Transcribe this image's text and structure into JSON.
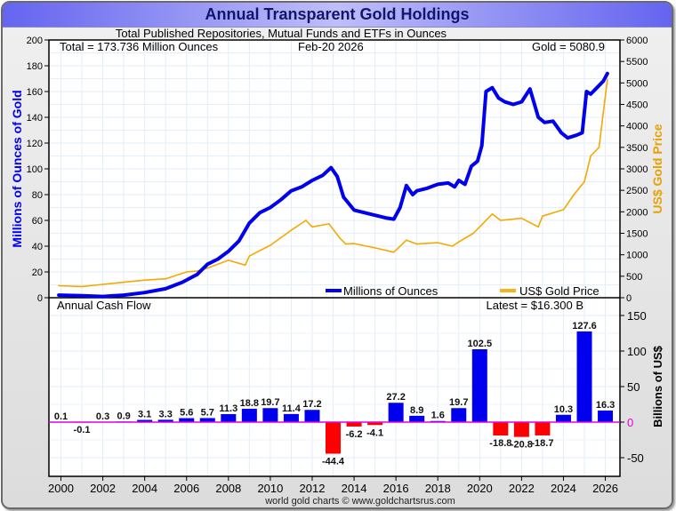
{
  "chart_data": [
    {
      "type": "line",
      "title": "Annual Transparent Gold Holdings",
      "subtitle": "Total Published Repositories, Mutual Funds and ETFs in Ounces",
      "annotations": {
        "total": "Total = 173.736 Million Ounces",
        "date": "Feb-20  2026",
        "gold": "Gold = 5080.9"
      },
      "ylabel": "Millions of Ounces of Gold",
      "y2label": "US$ Gold Price",
      "ylim": [
        0,
        200
      ],
      "y2lim": [
        0,
        6000
      ],
      "yticks": [
        "0",
        "20",
        "40",
        "60",
        "80",
        "100",
        "120",
        "140",
        "160",
        "180",
        "200"
      ],
      "y2ticks": [
        "0",
        "500",
        "1000",
        "1500",
        "2000",
        "2500",
        "3000",
        "3500",
        "4000",
        "4500",
        "5000",
        "5500",
        "6000"
      ],
      "legend_position": "bottom-right",
      "grid": true,
      "series": [
        {
          "name": "Millions of Ounces",
          "axis": "left",
          "color": "#0000ee",
          "x": [
            1999.9,
            2001,
            2002,
            2003,
            2004,
            2005,
            2005.8,
            2006.5,
            2007,
            2007.5,
            2008,
            2008.5,
            2009,
            2009.5,
            2010,
            2010.5,
            2011,
            2011.5,
            2012,
            2012.5,
            2012.9,
            2013.2,
            2013.5,
            2014,
            2014.5,
            2015,
            2015.5,
            2015.9,
            2016.2,
            2016.5,
            2016.8,
            2017,
            2017.5,
            2018,
            2018.5,
            2018.8,
            2019,
            2019.3,
            2019.6,
            2019.9,
            2020.1,
            2020.3,
            2020.6,
            2020.9,
            2021.2,
            2021.6,
            2022.0,
            2022.4,
            2022.8,
            2023.1,
            2023.5,
            2023.9,
            2024.2,
            2024.6,
            2024.9,
            2025.1,
            2025.3,
            2025.6,
            2025.9,
            2026.1
          ],
          "values": [
            2,
            1.5,
            1,
            2,
            4,
            7,
            12,
            18,
            26,
            30,
            36,
            44,
            58,
            66,
            70,
            76,
            83,
            86,
            91,
            95,
            101,
            94,
            78,
            68,
            66,
            64,
            62,
            61,
            70,
            87,
            80,
            83,
            85,
            88,
            89,
            86,
            91,
            88,
            102,
            106,
            118,
            160,
            163,
            155,
            152,
            150,
            152,
            162,
            140,
            136,
            137,
            128,
            124,
            126,
            128,
            160,
            158,
            163,
            168,
            174
          ]
        },
        {
          "name": "US$ Gold Price",
          "axis": "right",
          "color": "#f5a800",
          "x": [
            1999.9,
            2001,
            2002,
            2003,
            2004,
            2005,
            2006,
            2006.5,
            2007,
            2008,
            2008.8,
            2009,
            2010,
            2011,
            2011.7,
            2012,
            2012.8,
            2013.3,
            2013.6,
            2014,
            2015,
            2015.9,
            2016.5,
            2017,
            2018,
            2018.7,
            2019,
            2019.7,
            2020.6,
            2021,
            2022,
            2022.8,
            2023,
            2024,
            2024.5,
            2025,
            2025.3,
            2025.7,
            2025.9,
            2026.1
          ],
          "values": [
            280,
            260,
            310,
            360,
            410,
            440,
            600,
            620,
            690,
            870,
            760,
            970,
            1220,
            1570,
            1800,
            1650,
            1720,
            1400,
            1250,
            1260,
            1160,
            1060,
            1340,
            1250,
            1280,
            1200,
            1300,
            1500,
            1950,
            1800,
            1850,
            1650,
            1900,
            2050,
            2400,
            2700,
            3300,
            3500,
            4300,
            5080
          ]
        }
      ]
    },
    {
      "type": "bar",
      "title": "Annual Cash Flow",
      "annotation": "Latest = $16.300 B",
      "ylabel": "Billions of US$",
      "ylim": [
        -75,
        175
      ],
      "yticks": [
        "-50",
        "0",
        "50",
        "100",
        "150"
      ],
      "xlabel": "",
      "xticks": [
        "2000",
        "2002",
        "2004",
        "2006",
        "2008",
        "2010",
        "2012",
        "2014",
        "2016",
        "2018",
        "2020",
        "2022",
        "2024",
        "2026"
      ],
      "categories": [
        2000,
        2001,
        2002,
        2003,
        2004,
        2005,
        2006,
        2007,
        2008,
        2009,
        2010,
        2011,
        2012,
        2013,
        2014,
        2015,
        2016,
        2017,
        2018,
        2019,
        2020,
        2021,
        2022,
        2023,
        2024,
        2025,
        2026
      ],
      "values": [
        0.1,
        -0.1,
        0.3,
        0.9,
        3.1,
        3.3,
        5.6,
        5.7,
        11.3,
        18.8,
        19.7,
        11.4,
        17.2,
        -44.4,
        -6.2,
        -4.1,
        27.2,
        8.9,
        1.6,
        19.7,
        102.5,
        -18.8,
        -20.8,
        -18.7,
        10.3,
        127.6,
        16.3
      ],
      "labels": [
        "0.1",
        "-0.1",
        "0.3",
        "0.9",
        "3.1",
        "3.3",
        "5.6",
        "5.7",
        "11.3",
        "18.8",
        "19.7",
        "11.4",
        "17.2",
        "-44.4",
        "-6.2",
        "-4.1",
        "27.2",
        "8.9",
        "1.6",
        "19.7",
        "102.5",
        "-18.8",
        "-20.8",
        "-18.7",
        "10.3",
        "127.6",
        "16.3"
      ],
      "positive_color": "#0000ee",
      "negative_color": "#ff0000",
      "zero_line_color": "#e000e0"
    }
  ],
  "footer": "world gold charts © www.goldchartsrus.com"
}
